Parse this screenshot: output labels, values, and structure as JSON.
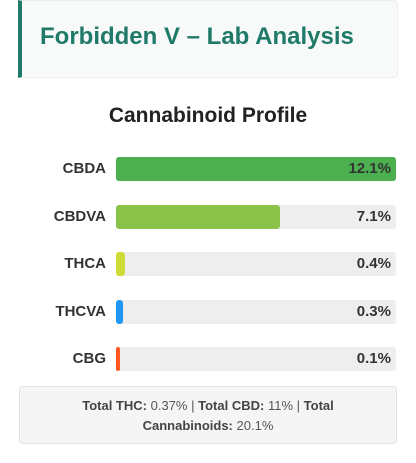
{
  "header": {
    "title": "Forbidden V – Lab Analysis"
  },
  "profile": {
    "title": "Cannabinoid Profile"
  },
  "chart_data": {
    "type": "bar",
    "orientation": "horizontal",
    "title": "Cannabinoid Profile",
    "categories": [
      "CBDA",
      "CBDVA",
      "THCA",
      "THCVA",
      "CBG"
    ],
    "values": [
      12.1,
      7.1,
      0.4,
      0.3,
      0.1
    ],
    "value_labels": [
      "12.1%",
      "7.1%",
      "0.4%",
      "0.3%",
      "0.1%"
    ],
    "xlim": [
      0,
      12.1
    ],
    "colors": [
      "#4caf50",
      "#8bc34a",
      "#cddc39",
      "#2196f3",
      "#ff5722"
    ]
  },
  "summary": {
    "total_thc_label": "Total THC:",
    "total_thc_value": "0.37%",
    "separator": "|",
    "total_cbd_label": "Total CBD:",
    "total_cbd_value": "11%",
    "total_cannabinoids_label_1": "Total",
    "total_cannabinoids_label_2": "Cannabinoids:",
    "total_cannabinoids_value": "20.1%"
  }
}
